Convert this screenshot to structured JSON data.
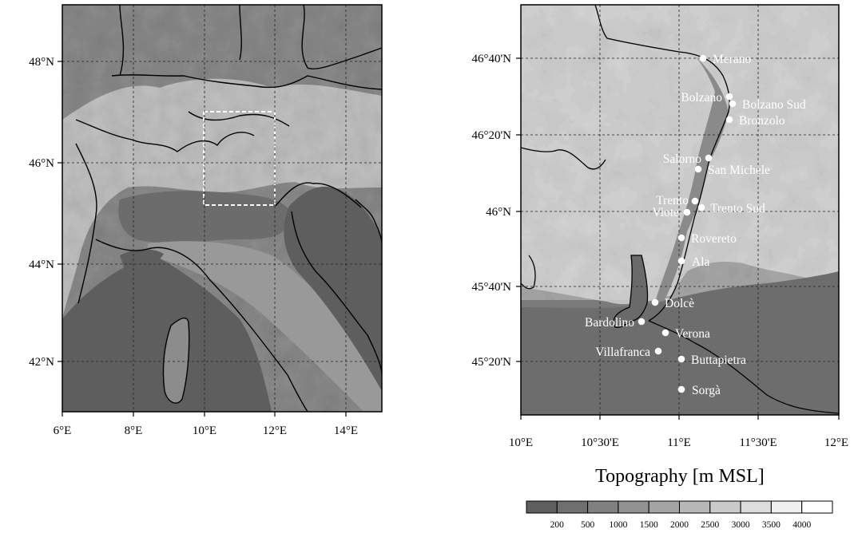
{
  "left_map": {
    "lat_labels": [
      "48°N",
      "46°N",
      "44°N",
      "42°N"
    ],
    "lon_labels": [
      "6°E",
      "8°E",
      "10°E",
      "12°E",
      "14°E"
    ]
  },
  "right_map": {
    "lat_labels": [
      "46°40'N",
      "46°20'N",
      "46°N",
      "45°40'N",
      "45°20'N"
    ],
    "lon_labels": [
      "10°E",
      "10°30'E",
      "11°E",
      "11°30'E",
      "12°E"
    ],
    "stations": [
      {
        "name": "Merano",
        "side": "right"
      },
      {
        "name": "Bolzano",
        "side": "left"
      },
      {
        "name": "Bolzano Sud",
        "side": "right"
      },
      {
        "name": "Bronzolo",
        "side": "right"
      },
      {
        "name": "Salorno",
        "side": "left"
      },
      {
        "name": "San Michele",
        "side": "right"
      },
      {
        "name": "Trento",
        "side": "left"
      },
      {
        "name": "Trento Sud",
        "side": "right"
      },
      {
        "name": "Viote",
        "side": "left"
      },
      {
        "name": "Rovereto",
        "side": "right"
      },
      {
        "name": "Ala",
        "side": "right"
      },
      {
        "name": "Dolcè",
        "side": "right"
      },
      {
        "name": "Bardolino",
        "side": "left"
      },
      {
        "name": "Verona",
        "side": "right"
      },
      {
        "name": "Villafranca",
        "side": "left"
      },
      {
        "name": "Buttapietra",
        "side": "right"
      },
      {
        "name": "Sorgà",
        "side": "right"
      }
    ]
  },
  "legend": {
    "title": "Topography [m MSL]",
    "ticks": [
      "200",
      "500",
      "1000",
      "1500",
      "2000",
      "2500",
      "3000",
      "3500",
      "4000"
    ],
    "colors": [
      "#5f5f5f",
      "#6f6f6f",
      "#808080",
      "#929292",
      "#a4a4a4",
      "#b7b7b7",
      "#cacaca",
      "#dddddd",
      "#f0f0f0",
      "#ffffff"
    ]
  },
  "colors": {
    "lowland": "#6b6b6b",
    "sea": "#5a5a5a",
    "coast": "#000000",
    "station": "#ffffff",
    "domain_box": "#ffffff"
  }
}
